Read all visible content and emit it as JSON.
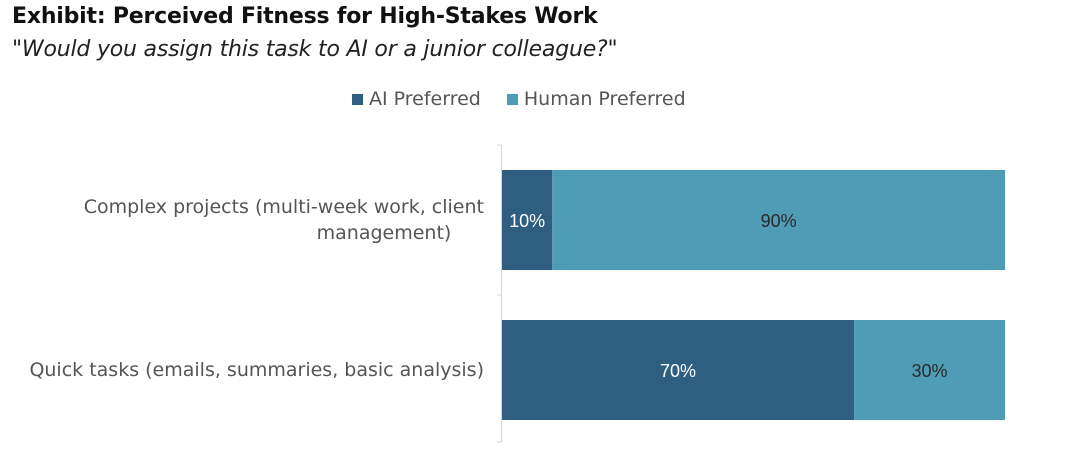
{
  "title": "Exhibit: Perceived Fitness for High-Stakes Work",
  "subtitle": "\"Would you assign this task to AI or a junior colleague?\"",
  "chart_data": {
    "type": "bar",
    "orientation": "horizontal",
    "stacked": true,
    "categories": [
      [
        "Complex projects (multi-week work, client",
        "management)"
      ],
      [
        "Quick tasks (emails, summaries, basic analysis)"
      ]
    ],
    "series": [
      {
        "name": "AI Preferred",
        "values": [
          10,
          70
        ],
        "labels": [
          "10%",
          "70%"
        ],
        "color": "#2e5f80",
        "label_color": "#ffffff"
      },
      {
        "name": "Human Preferred",
        "values": [
          90,
          30
        ],
        "labels": [
          "90%",
          "30%"
        ],
        "color": "#4f9cb7",
        "label_color": "#2a2a2a"
      }
    ],
    "xlim": [
      0,
      100
    ],
    "legend_position": "top",
    "grid": false
  }
}
